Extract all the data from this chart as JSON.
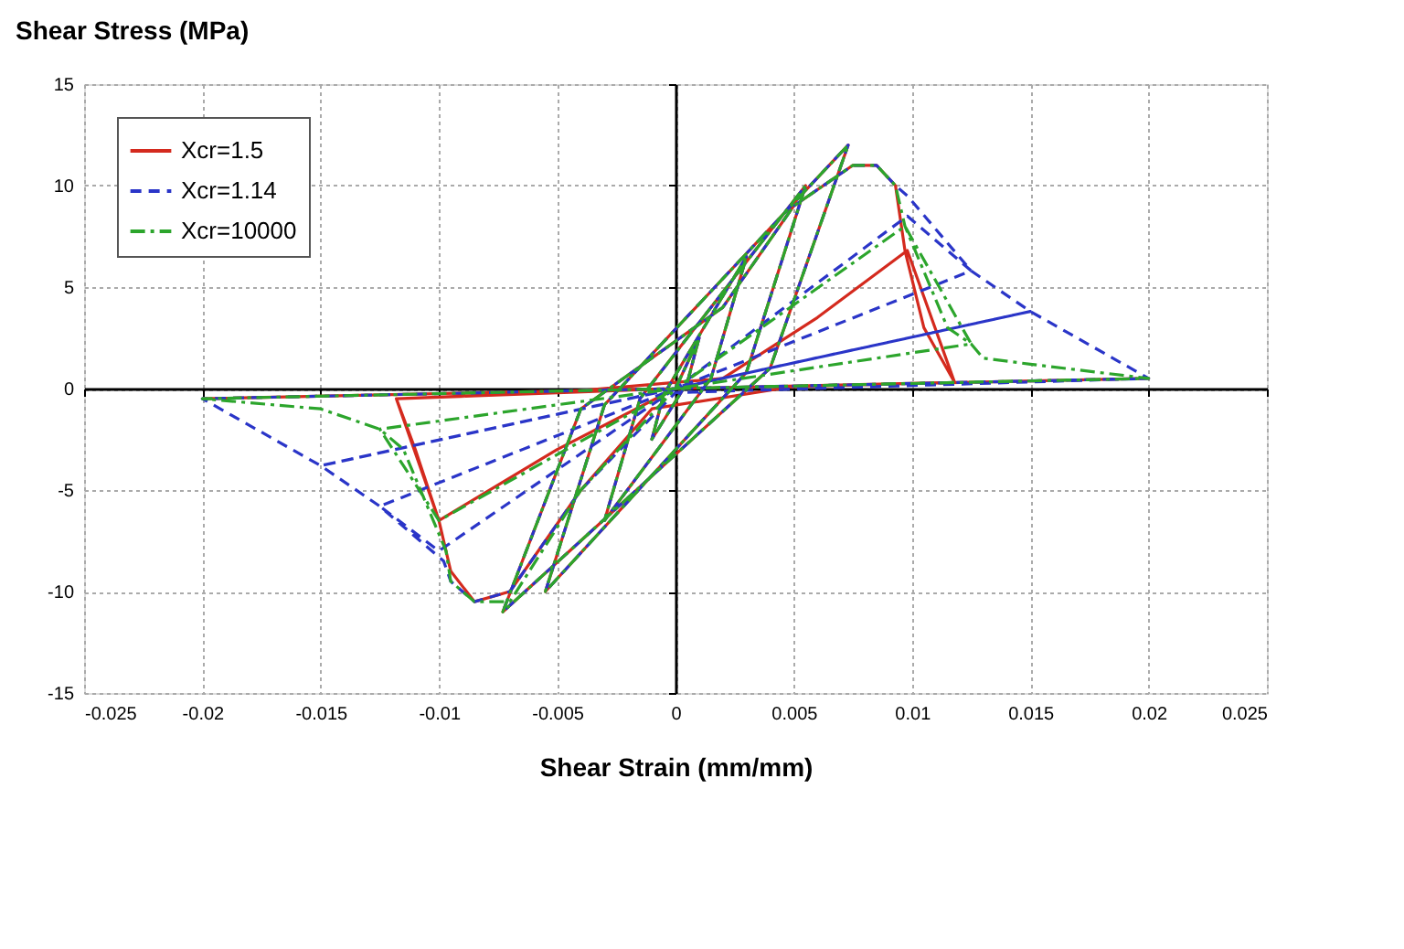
{
  "chart_data": {
    "type": "line",
    "xlabel": "Shear Strain (mm/mm)",
    "ylabel": "Shear Stress (MPa)",
    "xlim": [
      -0.025,
      0.025
    ],
    "xticks": [
      -0.025,
      -0.02,
      -0.015,
      -0.01,
      -0.005,
      0,
      0.005,
      0.01,
      0.015,
      0.02,
      0.025
    ],
    "ylim": [
      -15,
      15
    ],
    "yticks": [
      -15,
      -10,
      -5,
      0,
      5,
      10,
      15
    ],
    "grid": true,
    "legend": "top left",
    "marker": "none",
    "series": [
      {
        "name": "Xcr=1.5",
        "color": "#d42a1e",
        "line_style": "solid",
        "x": [
          0,
          0.001,
          0.0005,
          -0.001,
          -0.0005,
          0.003,
          0.0015,
          -0.003,
          -0.0015,
          0.0055,
          0.003,
          -0.0055,
          -0.003,
          0.0073,
          0.004,
          -0.0073,
          -0.004,
          0.002,
          0.005,
          0.0075,
          0.0085,
          0.0093,
          0.0097,
          0.0105,
          0.0118,
          0.005,
          -0.001,
          -0.004,
          -0.007,
          -0.0085,
          -0.0095,
          -0.01,
          -0.011,
          -0.0118,
          -0.005,
          0.002,
          0.006,
          0.0098,
          0.0118,
          0,
          -0.005,
          -0.01,
          -0.0118,
          0,
          0.02,
          0,
          -0.02
        ],
        "values": [
          0,
          2.5,
          0.3,
          -2.5,
          -0.3,
          6.5,
          0.5,
          -6.5,
          -0.5,
          10,
          0.8,
          -10,
          -0.8,
          12,
          1,
          -11,
          -1,
          4,
          9,
          11,
          11,
          10,
          6.8,
          3,
          0.3,
          0.1,
          -1,
          -5,
          -10,
          -10.5,
          -9,
          -6.5,
          -3,
          -0.5,
          -0.2,
          0.5,
          3.5,
          6.8,
          0.3,
          0,
          -3,
          -6.5,
          -0.5,
          0,
          0.5,
          0,
          -0.5
        ]
      },
      {
        "name": "Xcr=1.14",
        "color": "#2a35c8",
        "line_style": "dashed",
        "x": [
          0,
          0.001,
          0.0005,
          -0.001,
          -0.0005,
          0.003,
          0.0015,
          -0.003,
          -0.0015,
          0.0055,
          0.003,
          -0.0055,
          -0.003,
          0.0073,
          0.004,
          -0.0073,
          -0.004,
          0.002,
          0.005,
          0.0075,
          0.0085,
          0.0093,
          0.0098,
          0.0125,
          0.015,
          0.02,
          0,
          -0.004,
          -0.007,
          -0.0085,
          -0.0095,
          -0.0098,
          -0.0125,
          -0.015,
          -0.02,
          0,
          0.0098,
          0.0125,
          0,
          -0.01,
          -0.0125,
          0,
          0.015,
          0,
          -0.015,
          0,
          0.02
        ],
        "values": [
          0,
          2.5,
          0.3,
          -2.5,
          -0.3,
          6.5,
          0.5,
          -6.5,
          -0.5,
          10,
          0.8,
          -10,
          -0.8,
          12,
          1,
          -11,
          -1,
          4,
          9,
          11,
          11,
          10,
          9.5,
          5.8,
          3.8,
          0.5,
          -0.2,
          -5,
          -10,
          -10.5,
          -9.5,
          -8.5,
          -5.8,
          -3.8,
          -0.5,
          0,
          8.5,
          5.8,
          0,
          -8,
          -5.8,
          0,
          3.8,
          0,
          -3.8,
          0,
          0.5
        ]
      },
      {
        "name": "Xcr=10000",
        "color": "#2ca52c",
        "line_style": "dashdot",
        "x": [
          0,
          0.001,
          0.0005,
          -0.001,
          -0.0005,
          0.003,
          0.0015,
          -0.003,
          -0.0015,
          0.0055,
          0.003,
          -0.0055,
          -0.003,
          0.0073,
          0.004,
          -0.0073,
          -0.004,
          0.002,
          0.005,
          0.0075,
          0.0085,
          0.0093,
          0.0097,
          0.0115,
          0.0125,
          0.013,
          0.015,
          0.02,
          0,
          -0.004,
          -0.007,
          -0.0085,
          -0.0095,
          -0.0097,
          -0.0115,
          -0.0125,
          -0.015,
          -0.02,
          0,
          0.0097,
          0.0125,
          0,
          -0.01,
          -0.0125,
          0,
          0.02
        ],
        "values": [
          0,
          2.5,
          0.3,
          -2.5,
          -0.3,
          6.5,
          0.5,
          -6.5,
          -0.5,
          10,
          0.8,
          -10,
          -0.8,
          12,
          1,
          -11,
          -1,
          4,
          9,
          11,
          11,
          10,
          8,
          3,
          2.2,
          1.5,
          1.2,
          0.5,
          0,
          -5,
          -10.5,
          -10.5,
          -9.5,
          -8,
          -3,
          -2,
          -1,
          -0.5,
          0,
          8,
          2.2,
          0,
          -6.5,
          -2,
          0,
          0.5
        ]
      }
    ]
  }
}
